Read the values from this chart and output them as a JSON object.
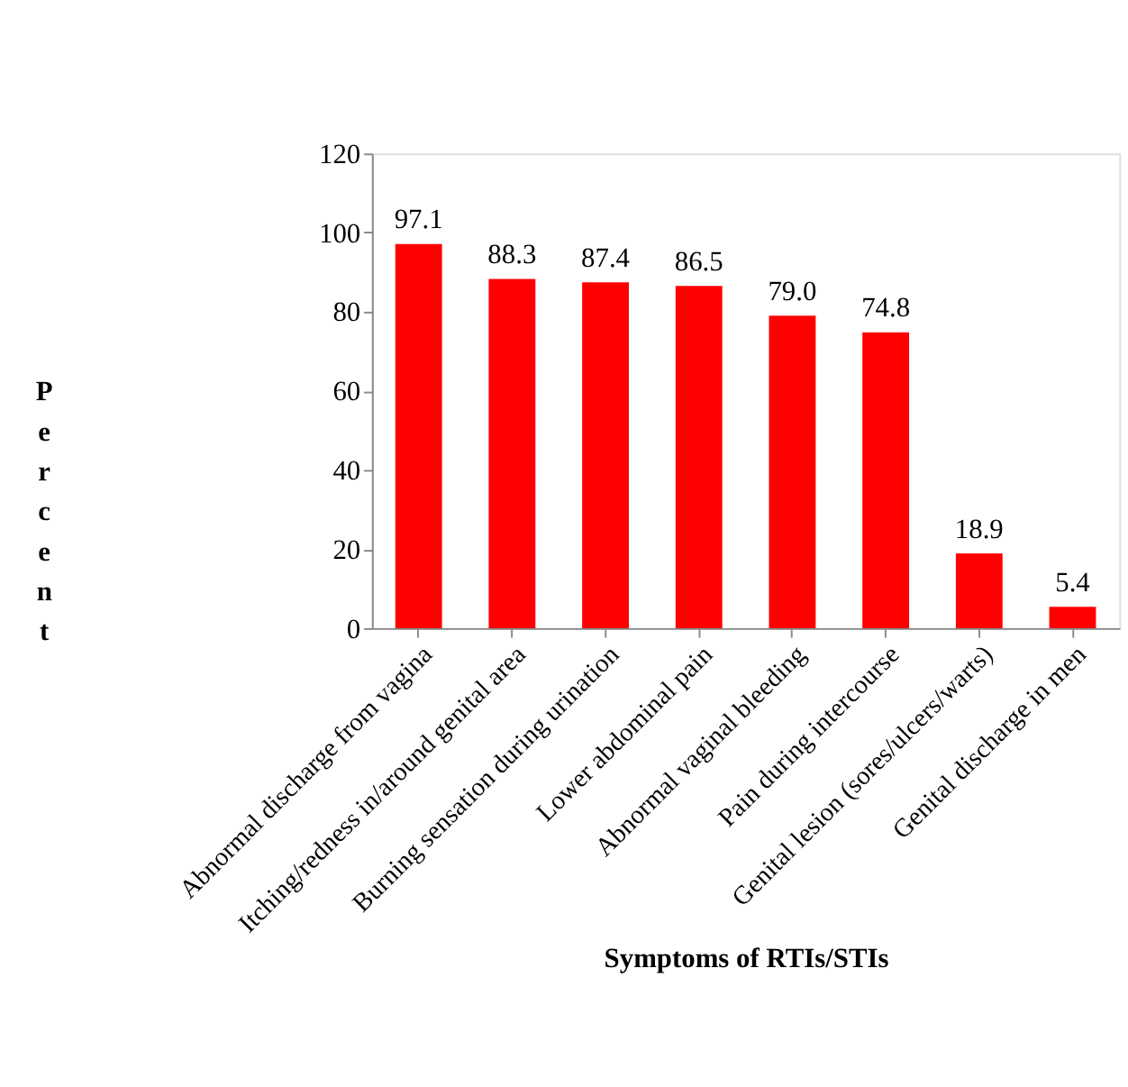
{
  "chart_data": {
    "type": "bar",
    "xlabel": "Symptoms of RTIs/STIs",
    "ylabel": "Percent",
    "categories": [
      "Abnormal discharge from vagina",
      "Itching/redness in/around genital area",
      "Burning sensation during urination",
      "Lower abdominal pain",
      "Abnormal vaginal bleeding",
      "Pain during intercourse",
      "Genital lesion (sores/ulcers/warts)",
      "Genital discharge in men"
    ],
    "values": [
      97.1,
      88.3,
      87.4,
      86.5,
      79.0,
      74.8,
      18.9,
      5.4
    ],
    "value_labels": [
      "97.1",
      "88.3",
      "87.4",
      "86.5",
      "79.0",
      "74.8",
      "18.9",
      "5.4"
    ],
    "color": "#ff0000",
    "ylim": [
      0,
      120
    ],
    "yticks": [
      0,
      20,
      40,
      60,
      80,
      100,
      120
    ],
    "grid": false
  }
}
